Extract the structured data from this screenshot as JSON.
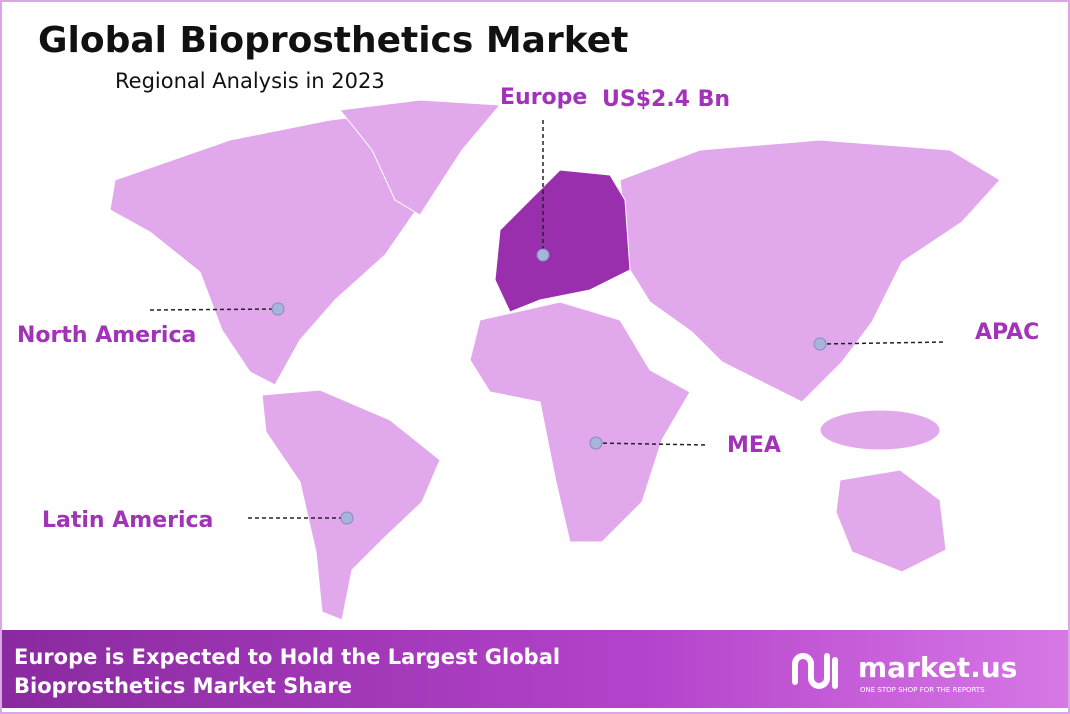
{
  "header": {
    "title": "Global Bioprosthetics Market",
    "subtitle": "Regional Analysis in 2023"
  },
  "regions": [
    {
      "label": "Europe",
      "value": "US$2.4 Bn"
    },
    {
      "label": "North America"
    },
    {
      "label": "APAC"
    },
    {
      "label": "MEA"
    },
    {
      "label": "Latin America"
    }
  ],
  "footer": {
    "line1": "Europe is Expected to Hold the Largest Global",
    "line2": "Bioprosthetics Market Share"
  },
  "logo": {
    "name": "market.us",
    "tagline": "ONE STOP SHOP FOR THE REPORTS"
  }
}
